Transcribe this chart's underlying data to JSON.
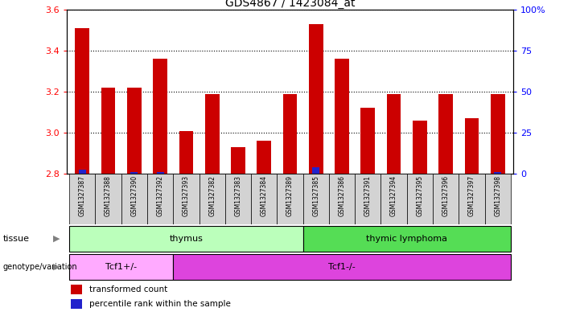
{
  "title": "GDS4867 / 1423084_at",
  "samples": [
    "GSM1327387",
    "GSM1327388",
    "GSM1327390",
    "GSM1327392",
    "GSM1327393",
    "GSM1327382",
    "GSM1327383",
    "GSM1327384",
    "GSM1327389",
    "GSM1327385",
    "GSM1327386",
    "GSM1327391",
    "GSM1327394",
    "GSM1327395",
    "GSM1327396",
    "GSM1327397",
    "GSM1327398"
  ],
  "red_values": [
    3.51,
    3.22,
    3.22,
    3.36,
    3.01,
    3.19,
    2.93,
    2.96,
    3.19,
    3.53,
    3.36,
    3.12,
    3.19,
    3.06,
    3.19,
    3.07,
    3.19
  ],
  "blue_values": [
    2.82,
    2.8,
    2.81,
    2.81,
    2.8,
    2.8,
    2.8,
    2.8,
    2.8,
    2.83,
    2.8,
    2.8,
    2.8,
    2.8,
    2.8,
    2.8,
    2.81
  ],
  "ymin": 2.8,
  "ymax": 3.6,
  "yticks": [
    2.8,
    3.0,
    3.2,
    3.4,
    3.6
  ],
  "y2ticks": [
    0,
    25,
    50,
    75,
    100
  ],
  "y2labels": [
    "0",
    "25",
    "50",
    "75",
    "100%"
  ],
  "tissue_groups": [
    {
      "label": "thymus",
      "start": 0,
      "end": 8,
      "color": "#BBFFBB"
    },
    {
      "label": "thymic lymphoma",
      "start": 9,
      "end": 16,
      "color": "#55DD55"
    }
  ],
  "genotype_groups": [
    {
      "label": "Tcf1+/-",
      "start": 0,
      "end": 3,
      "color": "#FFAAFF"
    },
    {
      "label": "Tcf1-/-",
      "start": 4,
      "end": 16,
      "color": "#DD44DD"
    }
  ],
  "bar_color": "#CC0000",
  "blue_color": "#2222CC",
  "bg_color": "#D3D3D3",
  "plot_bg": "#FFFFFF",
  "tissue_divider": 8.5,
  "genotype_divider": 3.5,
  "legend_items": [
    {
      "color": "#CC0000",
      "label": "transformed count"
    },
    {
      "color": "#2222CC",
      "label": "percentile rank within the sample"
    }
  ]
}
